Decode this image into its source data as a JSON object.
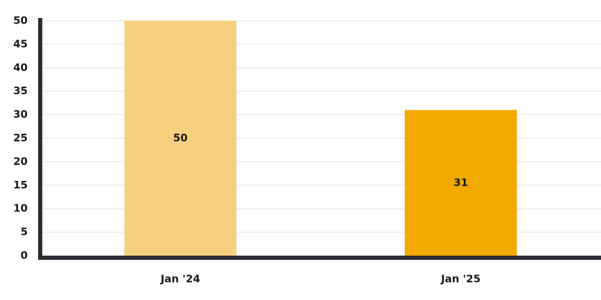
{
  "chart_data": {
    "type": "bar",
    "categories": [
      "Jan '24",
      "Jan '25"
    ],
    "values": [
      50,
      31
    ],
    "colors": [
      "#f6d07e",
      "#f2a900"
    ],
    "ylim": [
      0,
      50
    ],
    "yticks": [
      0,
      5,
      10,
      15,
      20,
      25,
      30,
      35,
      40,
      45,
      50
    ],
    "grid": true,
    "data_labels": true
  }
}
